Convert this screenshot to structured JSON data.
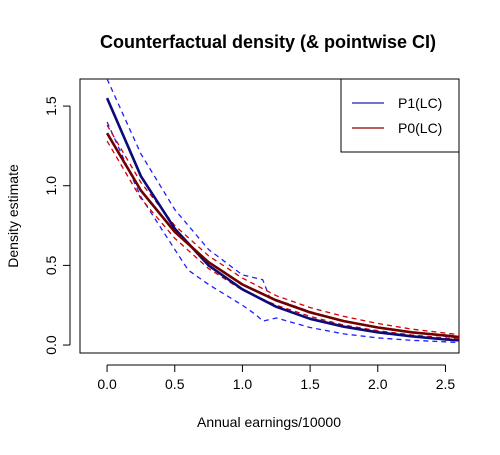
{
  "chart_data": {
    "type": "line",
    "title": "Counterfactual density (& pointwise CI)",
    "xlabel": "Annual earnings/10000",
    "ylabel": "Density estimate",
    "xlim": [
      -0.2,
      2.6
    ],
    "ylim": [
      -0.05,
      1.67
    ],
    "xticks": [
      "0.0",
      "0.5",
      "1.0",
      "1.5",
      "2.0",
      "2.5"
    ],
    "yticks": [
      "0.0",
      "0.5",
      "1.0",
      "1.5"
    ],
    "legend_position": "top-right",
    "legend": [
      {
        "label": "P1(LC)",
        "color": "#1f1fb8"
      },
      {
        "label": "P0(LC)",
        "color": "#8b0000"
      }
    ],
    "series": [
      {
        "name": "P1(LC)",
        "color": "#0a0a7a",
        "style": "solid",
        "x": [
          0.0,
          0.25,
          0.5,
          0.75,
          1.0,
          1.25,
          1.5,
          1.75,
          2.0,
          2.25,
          2.5,
          2.6
        ],
        "y": [
          1.55,
          1.06,
          0.73,
          0.5,
          0.35,
          0.24,
          0.165,
          0.115,
          0.08,
          0.055,
          0.035,
          0.03
        ]
      },
      {
        "name": "P1(LC) upper",
        "color": "#1f1fff",
        "style": "dashed",
        "x": [
          0.0,
          0.25,
          0.5,
          0.75,
          1.0,
          1.15,
          1.2,
          1.5,
          1.75,
          2.0,
          2.25,
          2.5,
          2.6
        ],
        "y": [
          1.67,
          1.2,
          0.85,
          0.6,
          0.44,
          0.41,
          0.3,
          0.21,
          0.15,
          0.11,
          0.08,
          0.055,
          0.045
        ]
      },
      {
        "name": "P1(LC) lower",
        "color": "#1f1fff",
        "style": "dashed",
        "x": [
          0.0,
          0.25,
          0.5,
          0.6,
          0.75,
          1.0,
          1.1,
          1.15,
          1.25,
          1.5,
          1.75,
          2.0,
          2.25,
          2.5,
          2.6
        ],
        "y": [
          1.4,
          0.93,
          0.6,
          0.47,
          0.38,
          0.25,
          0.19,
          0.15,
          0.17,
          0.11,
          0.07,
          0.045,
          0.03,
          0.02,
          0.015
        ]
      },
      {
        "name": "P0(LC)",
        "color": "#6e0000",
        "style": "solid",
        "x": [
          0.0,
          0.25,
          0.5,
          0.75,
          1.0,
          1.25,
          1.5,
          1.75,
          2.0,
          2.25,
          2.5,
          2.6
        ],
        "y": [
          1.33,
          0.97,
          0.71,
          0.52,
          0.38,
          0.28,
          0.205,
          0.15,
          0.11,
          0.08,
          0.06,
          0.05
        ]
      },
      {
        "name": "P0(LC) upper",
        "color": "#d40000",
        "style": "dashed",
        "x": [
          0.0,
          0.25,
          0.5,
          0.75,
          1.0,
          1.25,
          1.5,
          1.75,
          2.0,
          2.25,
          2.5,
          2.6
        ],
        "y": [
          1.38,
          1.02,
          0.75,
          0.56,
          0.42,
          0.31,
          0.235,
          0.18,
          0.135,
          0.1,
          0.075,
          0.065
        ]
      },
      {
        "name": "P0(LC) lower",
        "color": "#d40000",
        "style": "dashed",
        "x": [
          0.0,
          0.25,
          0.5,
          0.75,
          1.0,
          1.25,
          1.5,
          1.75,
          2.0,
          2.25,
          2.5,
          2.6
        ],
        "y": [
          1.28,
          0.92,
          0.67,
          0.48,
          0.345,
          0.25,
          0.18,
          0.125,
          0.09,
          0.063,
          0.045,
          0.038
        ]
      }
    ]
  }
}
